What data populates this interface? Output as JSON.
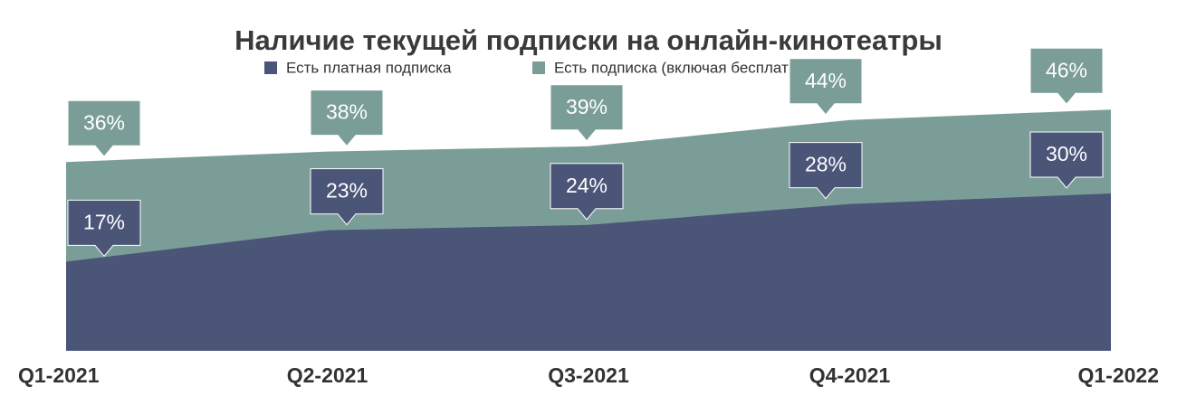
{
  "chart_data": {
    "type": "area",
    "title": "Наличие текущей подписки на онлайн-кинотеатры",
    "categories": [
      "Q1-2021",
      "Q2-2021",
      "Q3-2021",
      "Q4-2021",
      "Q1-2022"
    ],
    "series": [
      {
        "name": "Есть платная подписка",
        "color": "#4b5578",
        "values": [
          17,
          23,
          24,
          28,
          30
        ],
        "value_labels": [
          "17%",
          "23%",
          "24%",
          "28%",
          "30%"
        ]
      },
      {
        "name": "Есть подписка (включая бесплатную)",
        "color": "#7a9e97",
        "values": [
          36,
          38,
          39,
          44,
          46
        ],
        "value_labels": [
          "36%",
          "38%",
          "39%",
          "44%",
          "46%"
        ]
      }
    ],
    "legend": "top"
  }
}
